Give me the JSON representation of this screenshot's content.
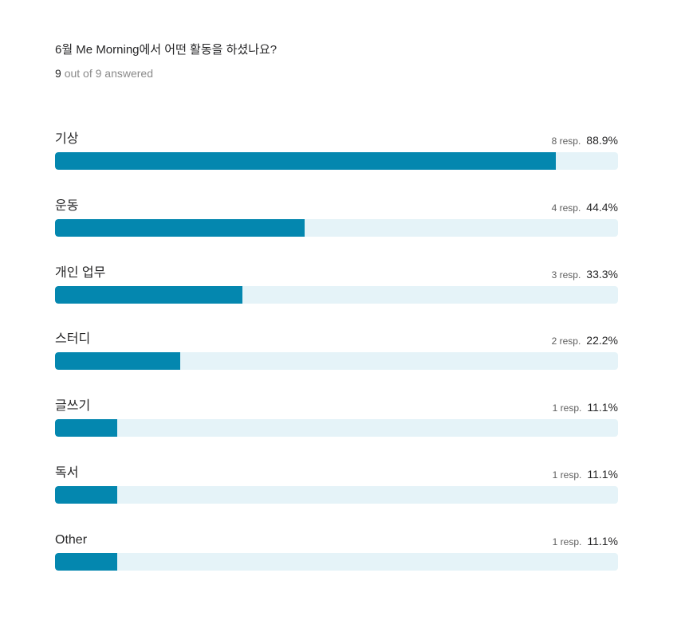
{
  "question": {
    "title": "6월 Me Morning에서 어떤 활동을 하셨나요?",
    "answered_count": "9",
    "answered_suffix": "out of 9 answered"
  },
  "colors": {
    "bar_fill": "#0487af",
    "bar_track": "#e5f3f8",
    "text_primary": "#262627",
    "text_muted": "#8a8a8a"
  },
  "chart_data": {
    "type": "bar",
    "orientation": "horizontal",
    "title": "6월 Me Morning에서 어떤 활동을 하셨나요?",
    "categories": [
      "기상",
      "운동",
      "개인 업무",
      "스터디",
      "글쓰기",
      "독서",
      "Other"
    ],
    "values": [
      88.9,
      44.4,
      33.3,
      22.2,
      11.1,
      11.1,
      11.1
    ],
    "responses": [
      8,
      4,
      3,
      2,
      1,
      1,
      1
    ],
    "value_labels": [
      "88.9%",
      "44.4%",
      "33.3%",
      "22.2%",
      "11.1%",
      "11.1%",
      "11.1%"
    ],
    "response_labels": [
      "8 resp.",
      "4 resp.",
      "3 resp.",
      "2 resp.",
      "1 resp.",
      "1 resp.",
      "1 resp."
    ],
    "xlim": [
      0,
      100
    ],
    "grid": false,
    "legend": "none"
  }
}
